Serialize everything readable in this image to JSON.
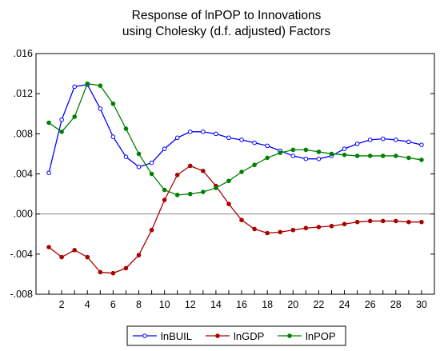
{
  "chart_data": {
    "type": "line",
    "title_lines": [
      "Response of lnPOP to Innovations",
      "using Cholesky (d.f. adjusted) Factors"
    ],
    "xlabel": "",
    "ylabel": "",
    "x": [
      1,
      2,
      3,
      4,
      5,
      6,
      7,
      8,
      9,
      10,
      11,
      12,
      13,
      14,
      15,
      16,
      17,
      18,
      19,
      20,
      21,
      22,
      23,
      24,
      25,
      26,
      27,
      28,
      29,
      30
    ],
    "x_tick_labels": [
      "2",
      "4",
      "6",
      "8",
      "10",
      "12",
      "14",
      "16",
      "18",
      "20",
      "22",
      "24",
      "26",
      "28",
      "30"
    ],
    "y_tick_labels": [
      ".016",
      ".012",
      ".008",
      ".004",
      ".000",
      "-.004",
      "-.008"
    ],
    "ylim": [
      -0.008,
      0.016
    ],
    "xlim": [
      0,
      31
    ],
    "zero_line": true,
    "legend_position": "bottom",
    "series": [
      {
        "name": "lnBUIL",
        "color": "#0000ff",
        "values": [
          0.0041,
          0.0094,
          0.0127,
          0.0129,
          0.0105,
          0.0077,
          0.0057,
          0.0047,
          0.0051,
          0.0065,
          0.0076,
          0.0082,
          0.0082,
          0.008,
          0.0076,
          0.0074,
          0.0071,
          0.0068,
          0.0063,
          0.0058,
          0.0055,
          0.0055,
          0.0058,
          0.0065,
          0.007,
          0.0074,
          0.0075,
          0.0074,
          0.0072,
          0.0069
        ]
      },
      {
        "name": "lnGDP",
        "color": "#aa0000",
        "values": [
          -0.0033,
          -0.0043,
          -0.0036,
          -0.0043,
          -0.0058,
          -0.0059,
          -0.0054,
          -0.0041,
          -0.0016,
          0.0014,
          0.0039,
          0.0048,
          0.0043,
          0.0028,
          0.001,
          -0.0006,
          -0.0015,
          -0.0019,
          -0.0018,
          -0.0016,
          -0.0014,
          -0.0013,
          -0.0012,
          -0.001,
          -0.0008,
          -0.0007,
          -0.0007,
          -0.0007,
          -0.0008,
          -0.0008
        ]
      },
      {
        "name": "lnPOP",
        "color": "#008000",
        "values": [
          0.0091,
          0.0082,
          0.0097,
          0.013,
          0.0128,
          0.011,
          0.0085,
          0.006,
          0.004,
          0.0024,
          0.0019,
          0.002,
          0.0022,
          0.0026,
          0.0033,
          0.0042,
          0.0049,
          0.0056,
          0.0061,
          0.0064,
          0.0064,
          0.0062,
          0.006,
          0.0059,
          0.0058,
          0.0058,
          0.0058,
          0.0058,
          0.0056,
          0.0054
        ]
      }
    ]
  }
}
